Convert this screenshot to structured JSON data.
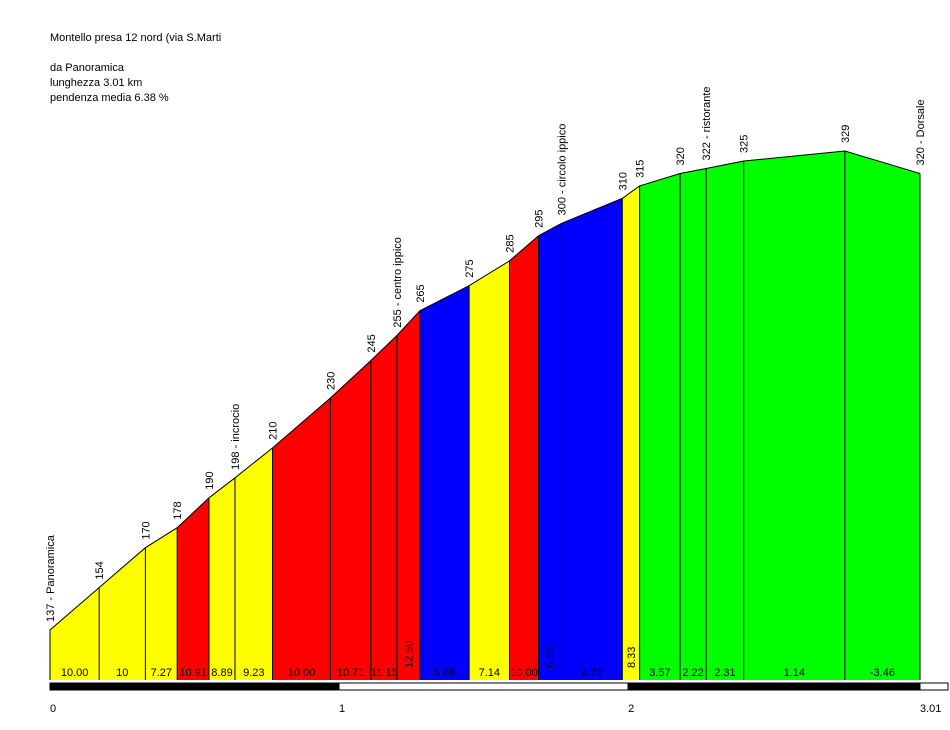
{
  "header": {
    "title": "Montello presa 12 nord (via S.Marti",
    "start": "da Panoramica",
    "length": "lunghezza 3.01 km",
    "avg_gradient": "pendenza media 6.38 %"
  },
  "colors": {
    "yellow": "#ffff00",
    "red": "#ff0000",
    "blue": "#0000ff",
    "green": "#00ff00",
    "outline": "#000000"
  },
  "chart_data": {
    "type": "area",
    "title": "Montello presa 12 nord (via S.Marti",
    "xlabel": "",
    "ylabel": "",
    "xlim": [
      0,
      3.01
    ],
    "x_ticks": [
      "0",
      "1",
      "2",
      "3.01"
    ],
    "points": [
      {
        "x": 0.0,
        "y": 137,
        "label": "137 - Panoramica"
      },
      {
        "x": 0.17,
        "y": 154,
        "label": "154"
      },
      {
        "x": 0.33,
        "y": 170,
        "label": "170"
      },
      {
        "x": 0.44,
        "y": 178,
        "label": "178"
      },
      {
        "x": 0.55,
        "y": 190,
        "label": "190"
      },
      {
        "x": 0.64,
        "y": 198,
        "label": "198 - incrocio"
      },
      {
        "x": 0.77,
        "y": 210,
        "label": "210"
      },
      {
        "x": 0.97,
        "y": 230,
        "label": "230"
      },
      {
        "x": 1.11,
        "y": 245,
        "label": "245"
      },
      {
        "x": 1.2,
        "y": 255,
        "label": "255 - centro ippico"
      },
      {
        "x": 1.28,
        "y": 265,
        "label": "265"
      },
      {
        "x": 1.45,
        "y": 275,
        "label": "275"
      },
      {
        "x": 1.59,
        "y": 285,
        "label": "285"
      },
      {
        "x": 1.69,
        "y": 295,
        "label": "295"
      },
      {
        "x": 1.77,
        "y": 300,
        "label": "300 - circolo ippico"
      },
      {
        "x": 1.98,
        "y": 310,
        "label": "310"
      },
      {
        "x": 2.04,
        "y": 315,
        "label": "315"
      },
      {
        "x": 2.18,
        "y": 320,
        "label": "320"
      },
      {
        "x": 2.27,
        "y": 322,
        "label": "322 - ristorante"
      },
      {
        "x": 2.4,
        "y": 325,
        "label": "325"
      },
      {
        "x": 2.75,
        "y": 329,
        "label": "329"
      },
      {
        "x": 3.01,
        "y": 320,
        "label": "320 - Dorsale"
      }
    ],
    "segments": [
      {
        "gradient": "10.00",
        "color": "yellow"
      },
      {
        "gradient": "10",
        "color": "yellow"
      },
      {
        "gradient": "7.27",
        "color": "yellow"
      },
      {
        "gradient": "10.91",
        "color": "red"
      },
      {
        "gradient": "8.89",
        "color": "yellow"
      },
      {
        "gradient": "9.23",
        "color": "yellow"
      },
      {
        "gradient": "10.00",
        "color": "red"
      },
      {
        "gradient": "10.71",
        "color": "red"
      },
      {
        "gradient": "11.11",
        "color": "red"
      },
      {
        "gradient": "12.50",
        "color": "red"
      },
      {
        "gradient": "5.88",
        "color": "blue"
      },
      {
        "gradient": "7.14",
        "color": "yellow"
      },
      {
        "gradient": "10.00",
        "color": "red"
      },
      {
        "gradient": "6.25",
        "color": "blue"
      },
      {
        "gradient": "4.76",
        "color": "blue"
      },
      {
        "gradient": "8.33",
        "color": "yellow"
      },
      {
        "gradient": "3.57",
        "color": "green"
      },
      {
        "gradient": "2.22",
        "color": "green"
      },
      {
        "gradient": "2.31",
        "color": "green"
      },
      {
        "gradient": "1.14",
        "color": "green"
      },
      {
        "gradient": "-3.46",
        "color": "green"
      }
    ]
  }
}
